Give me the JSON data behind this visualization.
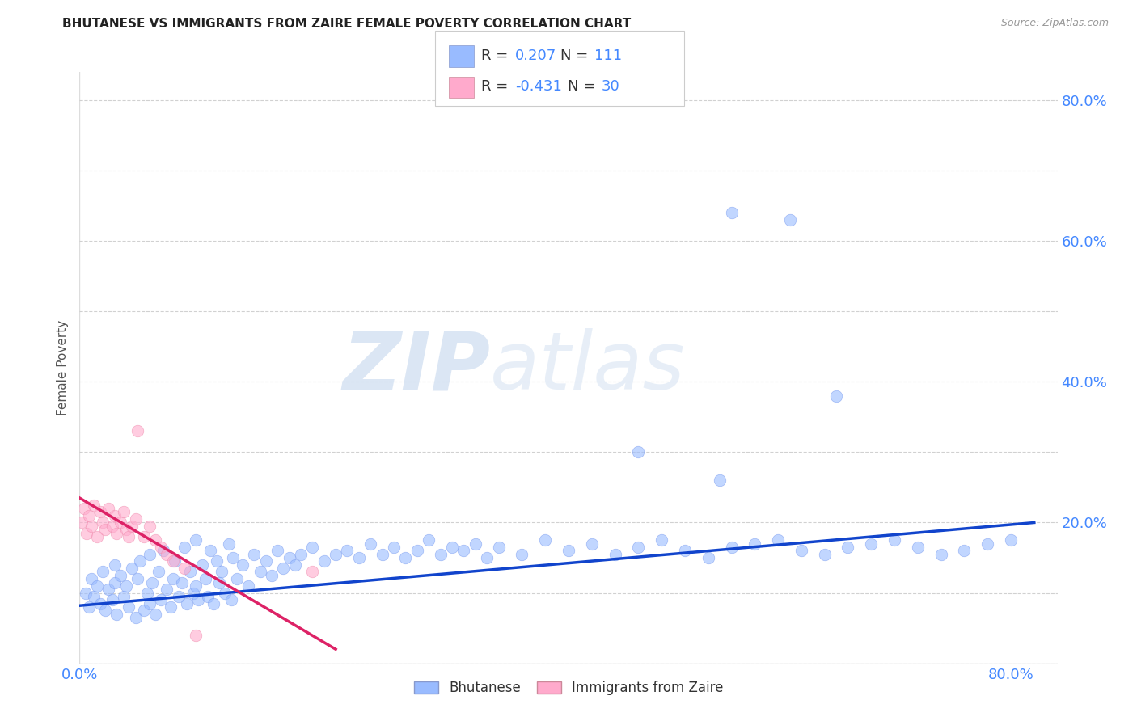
{
  "title": "BHUTANESE VS IMMIGRANTS FROM ZAIRE FEMALE POVERTY CORRELATION CHART",
  "source": "Source: ZipAtlas.com",
  "tick_color": "#4488ff",
  "ylabel": "Female Poverty",
  "xlim": [
    0.0,
    0.84
  ],
  "ylim": [
    0.0,
    0.84
  ],
  "blue_color": "#99bbff",
  "pink_color": "#ffaacc",
  "blue_line_color": "#1144cc",
  "pink_line_color": "#dd2266",
  "watermark_zip": "ZIP",
  "watermark_atlas": "atlas",
  "legend_label_blue": "Bhutanese",
  "legend_label_pink": "Immigrants from Zaire",
  "blue_scatter_x": [
    0.005,
    0.008,
    0.01,
    0.012,
    0.015,
    0.018,
    0.02,
    0.022,
    0.025,
    0.028,
    0.03,
    0.03,
    0.032,
    0.035,
    0.038,
    0.04,
    0.042,
    0.045,
    0.048,
    0.05,
    0.052,
    0.055,
    0.058,
    0.06,
    0.06,
    0.062,
    0.065,
    0.068,
    0.07,
    0.072,
    0.075,
    0.078,
    0.08,
    0.082,
    0.085,
    0.088,
    0.09,
    0.092,
    0.095,
    0.098,
    0.1,
    0.1,
    0.102,
    0.105,
    0.108,
    0.11,
    0.112,
    0.115,
    0.118,
    0.12,
    0.122,
    0.125,
    0.128,
    0.13,
    0.132,
    0.135,
    0.14,
    0.145,
    0.15,
    0.155,
    0.16,
    0.165,
    0.17,
    0.175,
    0.18,
    0.185,
    0.19,
    0.2,
    0.21,
    0.22,
    0.23,
    0.24,
    0.25,
    0.26,
    0.27,
    0.28,
    0.29,
    0.3,
    0.31,
    0.32,
    0.33,
    0.34,
    0.35,
    0.36,
    0.38,
    0.4,
    0.42,
    0.44,
    0.46,
    0.48,
    0.5,
    0.52,
    0.54,
    0.56,
    0.58,
    0.6,
    0.62,
    0.64,
    0.66,
    0.68,
    0.7,
    0.72,
    0.74,
    0.76,
    0.78,
    0.8,
    0.56,
    0.61,
    0.65,
    0.55,
    0.48
  ],
  "blue_scatter_y": [
    0.1,
    0.08,
    0.12,
    0.095,
    0.11,
    0.085,
    0.13,
    0.075,
    0.105,
    0.09,
    0.115,
    0.14,
    0.07,
    0.125,
    0.095,
    0.11,
    0.08,
    0.135,
    0.065,
    0.12,
    0.145,
    0.075,
    0.1,
    0.155,
    0.085,
    0.115,
    0.07,
    0.13,
    0.09,
    0.16,
    0.105,
    0.08,
    0.12,
    0.145,
    0.095,
    0.115,
    0.165,
    0.085,
    0.13,
    0.1,
    0.175,
    0.11,
    0.09,
    0.14,
    0.12,
    0.095,
    0.16,
    0.085,
    0.145,
    0.115,
    0.13,
    0.1,
    0.17,
    0.09,
    0.15,
    0.12,
    0.14,
    0.11,
    0.155,
    0.13,
    0.145,
    0.125,
    0.16,
    0.135,
    0.15,
    0.14,
    0.155,
    0.165,
    0.145,
    0.155,
    0.16,
    0.15,
    0.17,
    0.155,
    0.165,
    0.15,
    0.16,
    0.175,
    0.155,
    0.165,
    0.16,
    0.17,
    0.15,
    0.165,
    0.155,
    0.175,
    0.16,
    0.17,
    0.155,
    0.165,
    0.175,
    0.16,
    0.15,
    0.165,
    0.17,
    0.175,
    0.16,
    0.155,
    0.165,
    0.17,
    0.175,
    0.165,
    0.155,
    0.16,
    0.17,
    0.175,
    0.64,
    0.63,
    0.38,
    0.26,
    0.3
  ],
  "pink_scatter_x": [
    0.002,
    0.004,
    0.006,
    0.008,
    0.01,
    0.012,
    0.015,
    0.018,
    0.02,
    0.022,
    0.025,
    0.028,
    0.03,
    0.032,
    0.035,
    0.038,
    0.04,
    0.042,
    0.045,
    0.048,
    0.05,
    0.055,
    0.06,
    0.065,
    0.07,
    0.075,
    0.08,
    0.09,
    0.1,
    0.2
  ],
  "pink_scatter_y": [
    0.2,
    0.22,
    0.185,
    0.21,
    0.195,
    0.225,
    0.18,
    0.215,
    0.2,
    0.19,
    0.22,
    0.195,
    0.21,
    0.185,
    0.2,
    0.215,
    0.19,
    0.18,
    0.195,
    0.205,
    0.33,
    0.18,
    0.195,
    0.175,
    0.165,
    0.155,
    0.145,
    0.135,
    0.04,
    0.13
  ],
  "blue_trend_x": [
    0.0,
    0.82
  ],
  "blue_trend_y": [
    0.082,
    0.2
  ],
  "pink_trend_x": [
    0.0,
    0.22
  ],
  "pink_trend_y": [
    0.235,
    0.02
  ],
  "x_tick_positions": [
    0.0,
    0.1,
    0.2,
    0.3,
    0.4,
    0.5,
    0.6,
    0.7,
    0.8
  ],
  "x_tick_labels": [
    "0.0%",
    "",
    "",
    "",
    "",
    "",
    "",
    "",
    "80.0%"
  ],
  "y_tick_positions": [
    0.0,
    0.1,
    0.2,
    0.3,
    0.4,
    0.5,
    0.6,
    0.7,
    0.8
  ],
  "y_tick_labels_right": [
    "",
    "",
    "20.0%",
    "",
    "40.0%",
    "",
    "60.0%",
    "",
    "80.0%"
  ]
}
